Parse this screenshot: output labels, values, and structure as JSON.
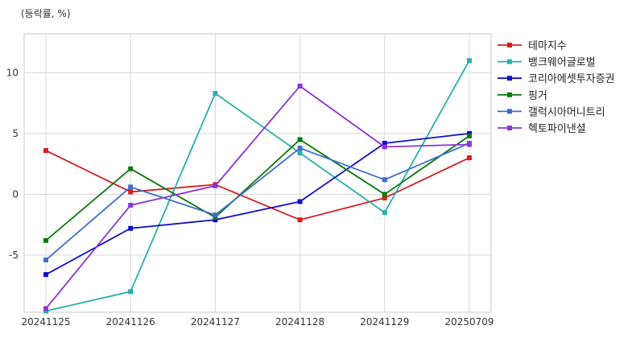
{
  "chart_data": {
    "type": "line",
    "unit_label": "(등락률, %)",
    "title": "",
    "xlabel": "",
    "ylabel": "",
    "categories": [
      "20241125",
      "20241126",
      "20241127",
      "20241128",
      "20241129",
      "20250709"
    ],
    "ylim": [
      -9.7,
      13.2
    ],
    "yticks": [
      10,
      5,
      0,
      -5
    ],
    "ytick_labels": [
      "10",
      "5",
      "0",
      "-5"
    ],
    "grid": true,
    "legend_position": "right",
    "series": [
      {
        "name": "테마지수",
        "color": "#d71d1d",
        "values": [
          3.6,
          0.2,
          0.8,
          -2.1,
          -0.3,
          3.0
        ]
      },
      {
        "name": "뱅크웨어글로벌",
        "color": "#27b0aa",
        "values": [
          -9.6,
          -8.0,
          8.3,
          3.4,
          -1.5,
          11.0
        ]
      },
      {
        "name": "코리아에셋투자증권",
        "color": "#0e0ecc",
        "values": [
          -6.6,
          -2.8,
          -2.1,
          -0.6,
          4.2,
          5.0
        ]
      },
      {
        "name": "핑거",
        "color": "#0c7a0c",
        "values": [
          -3.8,
          2.1,
          -1.9,
          4.5,
          0.0,
          4.8
        ]
      },
      {
        "name": "갤럭시아머니트리",
        "color": "#3d6ec9",
        "values": [
          -5.4,
          0.6,
          -1.7,
          3.8,
          1.2,
          4.2
        ]
      },
      {
        "name": "헥토파이낸셜",
        "color": "#8a34d6",
        "values": [
          -9.4,
          -0.9,
          0.7,
          8.9,
          3.9,
          4.1
        ]
      }
    ]
  }
}
